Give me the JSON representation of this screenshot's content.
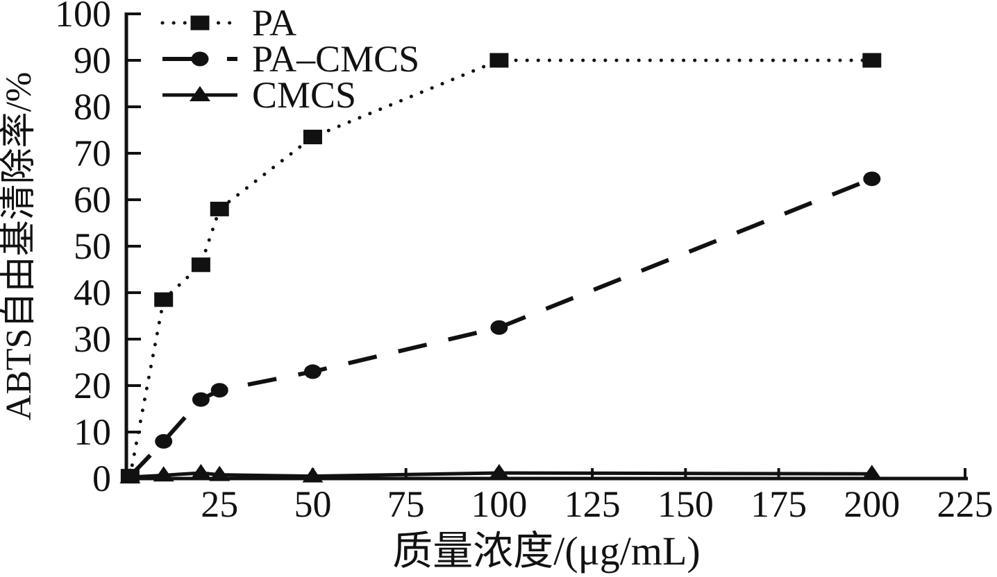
{
  "figure": {
    "background": "#ffffff",
    "ink_color": "#111111"
  },
  "chart_data": {
    "type": "line",
    "title": "",
    "xlabel": "质量浓度/(μg/mL)",
    "ylabel": "ABTS自由基清除率/%",
    "xlim": [
      0,
      232
    ],
    "ylim": [
      0,
      100
    ],
    "x_ticks": [
      25,
      50,
      75,
      100,
      125,
      150,
      175,
      200,
      225
    ],
    "y_ticks": [
      0,
      10,
      20,
      30,
      40,
      50,
      60,
      70,
      80,
      90,
      100
    ],
    "grid": false,
    "legend_position": "top-left-inside",
    "series": [
      {
        "name": "PA",
        "marker": "square",
        "line_style": "dotted",
        "points": [
          [
            1,
            0.5
          ],
          [
            10,
            38.5
          ],
          [
            20,
            46
          ],
          [
            25,
            58
          ],
          [
            50,
            73.5
          ],
          [
            100,
            90
          ],
          [
            200,
            90
          ]
        ]
      },
      {
        "name": "PA–CMCS",
        "marker": "circle",
        "line_style": "dashed",
        "points": [
          [
            1,
            0.5
          ],
          [
            10,
            8
          ],
          [
            20,
            17
          ],
          [
            25,
            19
          ],
          [
            50,
            23
          ],
          [
            100,
            32.5
          ],
          [
            200,
            64.5
          ]
        ]
      },
      {
        "name": "CMCS",
        "marker": "triangle",
        "line_style": "solid",
        "points": [
          [
            1,
            0.3
          ],
          [
            10,
            0.7
          ],
          [
            20,
            1.2
          ],
          [
            25,
            0.8
          ],
          [
            50,
            0.5
          ],
          [
            100,
            1.2
          ],
          [
            200,
            1.0
          ]
        ]
      }
    ]
  }
}
